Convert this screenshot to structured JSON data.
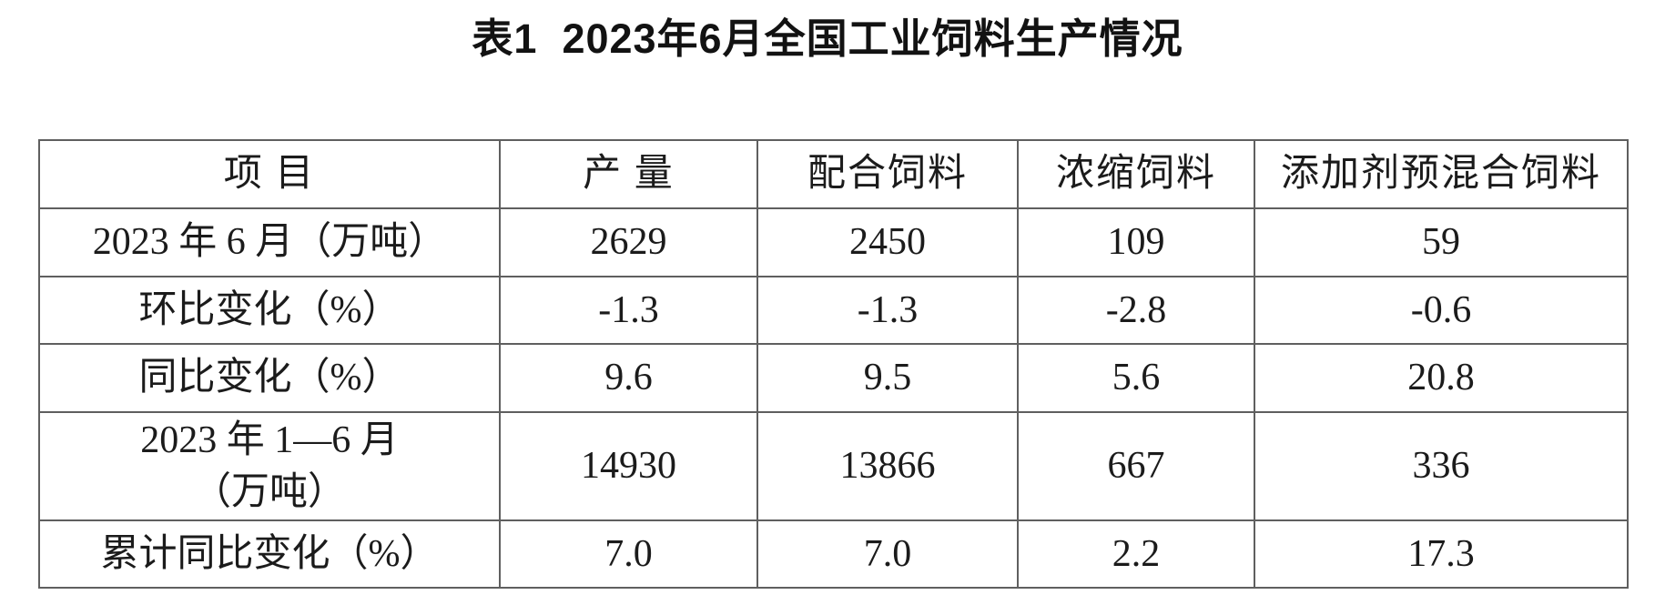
{
  "page_title": "表1  2023年6月全国工业饲料生产情况",
  "table": {
    "columns": [
      "项 目",
      "产 量",
      "配合饲料",
      "浓缩饲料",
      "添加剂预混合饲料"
    ],
    "rows": [
      {
        "label": "2023 年 6 月（万吨）",
        "values": [
          "2629",
          "2450",
          "109",
          "59"
        ]
      },
      {
        "label": "环比变化（%）",
        "values": [
          "-1.3",
          "-1.3",
          "-2.8",
          "-0.6"
        ]
      },
      {
        "label": "同比变化（%）",
        "values": [
          "9.6",
          "9.5",
          "5.6",
          "20.8"
        ]
      },
      {
        "label": "2023 年 1—6 月\n（万吨）",
        "values": [
          "14930",
          "13866",
          "667",
          "336"
        ]
      },
      {
        "label": "累计同比变化（%）",
        "values": [
          "7.0",
          "7.0",
          "2.2",
          "17.3"
        ]
      }
    ]
  },
  "colors": {
    "border": "#5f5f5f",
    "text": "#1b1b1b",
    "background": "#ffffff"
  }
}
